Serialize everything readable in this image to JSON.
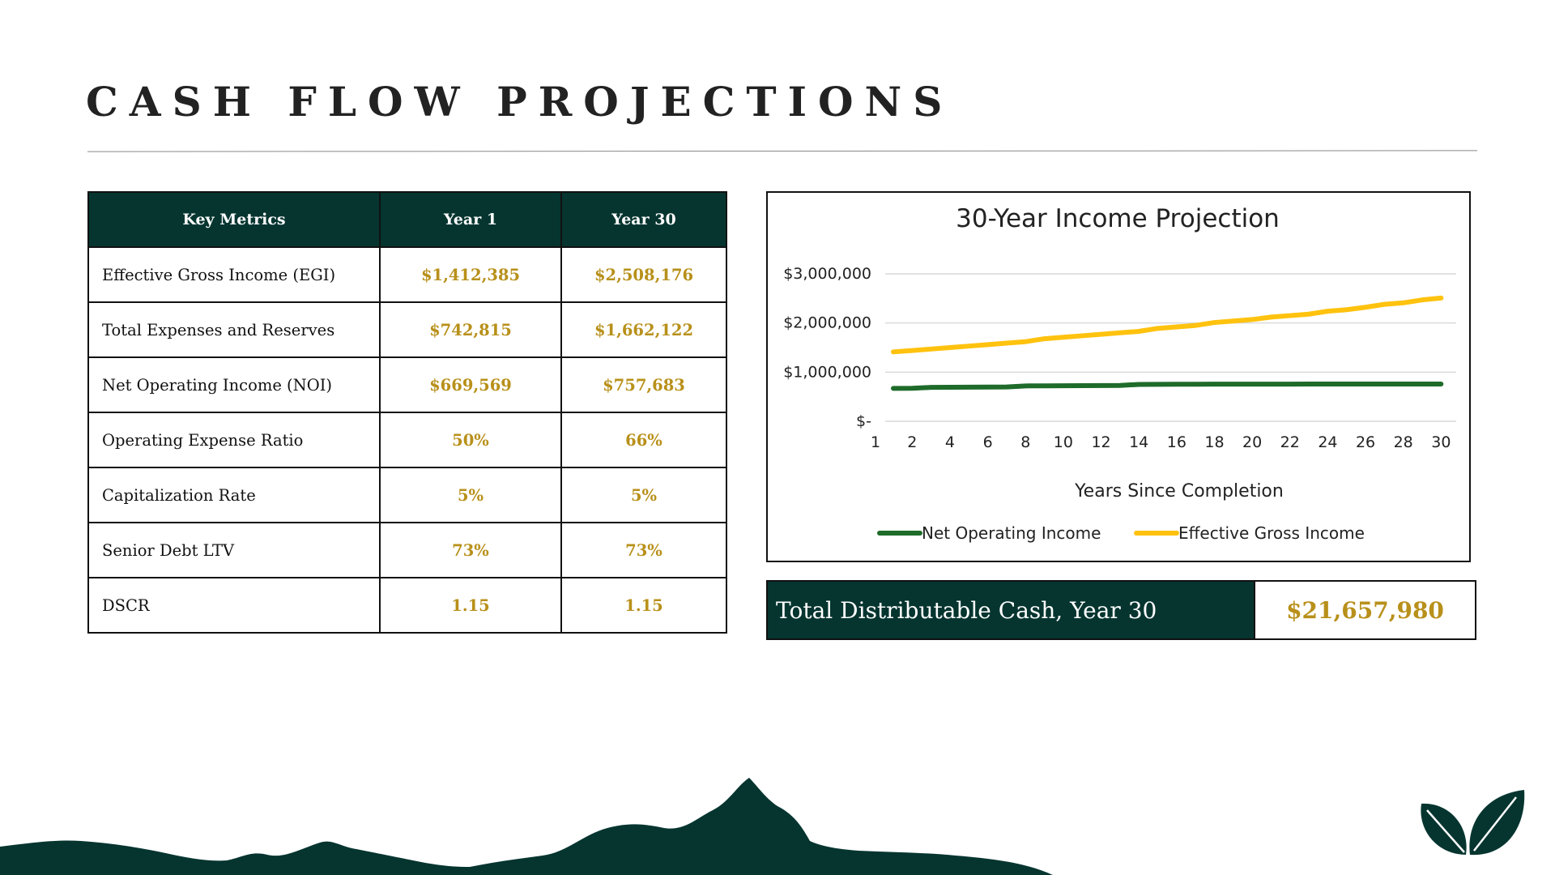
{
  "page": {
    "title": "CASH FLOW PROJECTIONS"
  },
  "table": {
    "headers": [
      "Key Metrics",
      "Year 1",
      "Year 30"
    ],
    "rows": [
      {
        "label": "Effective Gross Income (EGI)",
        "y1": "$1,412,385",
        "y30": "$2,508,176"
      },
      {
        "label": "Total Expenses and Reserves",
        "y1": "$742,815",
        "y30": "$1,662,122"
      },
      {
        "label": "Net Operating Income (NOI)",
        "y1": "$669,569",
        "y30": "$757,683"
      },
      {
        "label": "Operating Expense Ratio",
        "y1": "50%",
        "y30": "66%"
      },
      {
        "label": "Capitalization Rate",
        "y1": "5%",
        "y30": "5%"
      },
      {
        "label": "Senior Debt LTV",
        "y1": "73%",
        "y30": "73%"
      },
      {
        "label": "DSCR",
        "y1": "1.15",
        "y30": "1.15"
      }
    ]
  },
  "total": {
    "label": "Total Distributable Cash, Year 30",
    "value": "$21,657,980"
  },
  "colors": {
    "brand_dark": "#063530",
    "gold": "#b8901a",
    "noi_line": "#1e6b2a",
    "egi_line": "#ffc20e"
  },
  "chart_data": {
    "type": "line",
    "title": "30-Year Income Projection",
    "xlabel": "Years Since Completion",
    "ylabel": "",
    "x": [
      1,
      2,
      3,
      4,
      5,
      6,
      7,
      8,
      9,
      10,
      11,
      12,
      13,
      14,
      15,
      16,
      17,
      18,
      19,
      20,
      21,
      22,
      23,
      24,
      25,
      26,
      27,
      28,
      29,
      30
    ],
    "x_tick_labels": [
      "1",
      "2",
      "4",
      "6",
      "8",
      "10",
      "12",
      "14",
      "16",
      "18",
      "20",
      "22",
      "24",
      "26",
      "28",
      "30"
    ],
    "y_tick_labels": [
      "$-",
      "$1,000,000",
      "$2,000,000",
      "$3,000,000"
    ],
    "ylim": [
      0,
      3000000
    ],
    "grid": true,
    "legend_position": "bottom",
    "series": [
      {
        "name": "Net Operating Income",
        "color": "#1e6b2a",
        "values": [
          669569,
          671000,
          690000,
          692000,
          694000,
          696000,
          698000,
          720000,
          722000,
          724000,
          726000,
          728000,
          730000,
          750000,
          752000,
          754000,
          755000,
          756000,
          756500,
          757000,
          757100,
          757200,
          757300,
          757400,
          757500,
          757550,
          757600,
          757640,
          757670,
          757683
        ]
      },
      {
        "name": "Effective Gross Income",
        "color": "#ffc20e",
        "values": [
          1412385,
          1440000,
          1470000,
          1500000,
          1530000,
          1560000,
          1590000,
          1620000,
          1680000,
          1710000,
          1740000,
          1770000,
          1800000,
          1830000,
          1890000,
          1920000,
          1950000,
          2010000,
          2040000,
          2070000,
          2120000,
          2150000,
          2180000,
          2240000,
          2270000,
          2320000,
          2380000,
          2410000,
          2470000,
          2508176
        ]
      }
    ]
  }
}
